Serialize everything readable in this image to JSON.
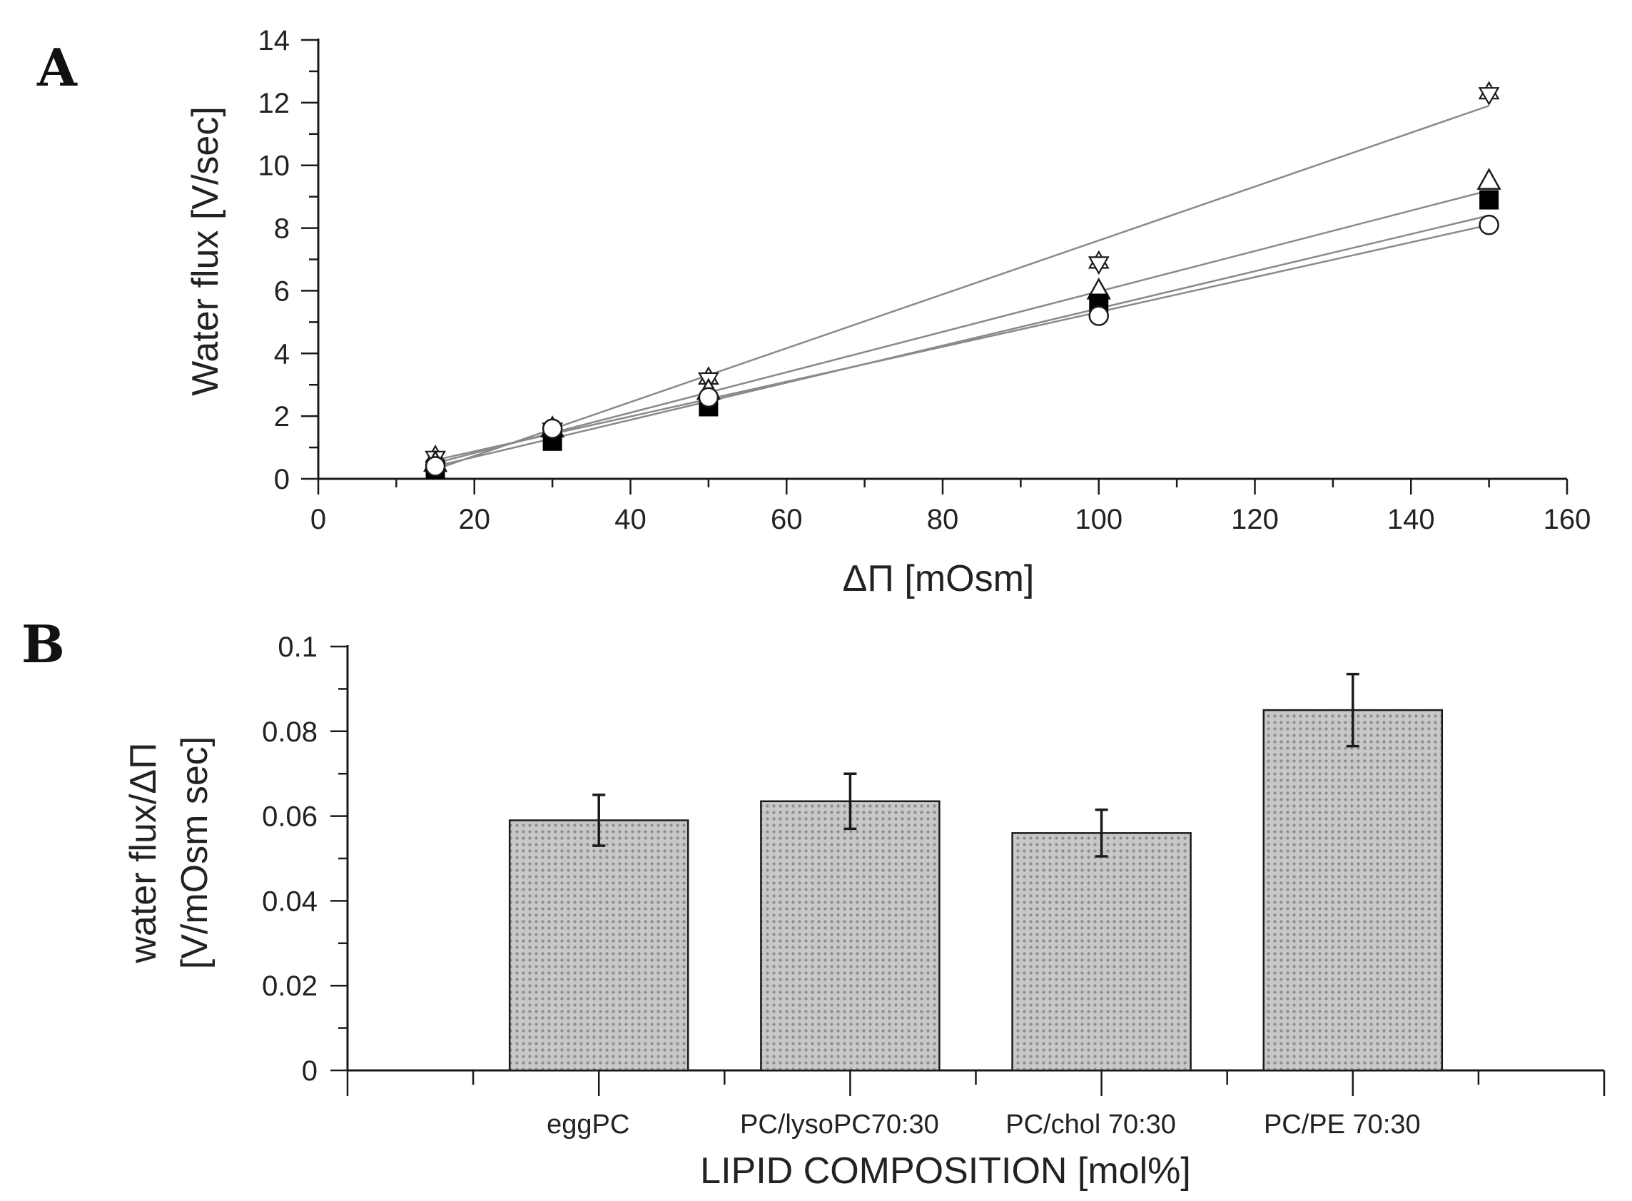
{
  "colors": {
    "ink": "#1a1a1a",
    "fit_line": "#8a8a8a",
    "bar_fill": "#c4c4c4",
    "bar_dot": "#8f8f8f"
  },
  "chart_data": [
    {
      "panel": "A",
      "type": "scatter",
      "xlabel": "ΔΠ [mOsm]",
      "ylabel": "Water flux [V/sec]",
      "xlim": [
        0,
        160
      ],
      "ylim": [
        0,
        14
      ],
      "xticks": [
        0,
        20,
        40,
        60,
        80,
        100,
        120,
        140,
        160
      ],
      "yticks": [
        0,
        2,
        4,
        6,
        8,
        10,
        12,
        14
      ],
      "series": [
        {
          "name": "PC/PE 70:30",
          "marker": "star-open",
          "x": [
            15,
            30,
            50,
            100,
            150
          ],
          "y": [
            0.7,
            1.6,
            3.2,
            6.9,
            12.3
          ],
          "fit": [
            0.3,
            11.9
          ]
        },
        {
          "name": "PC/lysoPC70:30",
          "marker": "triangle-open",
          "x": [
            15,
            30,
            50,
            100,
            150
          ],
          "y": [
            0.5,
            1.6,
            2.8,
            6.0,
            9.5
          ],
          "fit": [
            0.5,
            9.2
          ]
        },
        {
          "name": "eggPC",
          "marker": "square-filled",
          "x": [
            15,
            30,
            50,
            100,
            150
          ],
          "y": [
            0.3,
            1.2,
            2.3,
            5.6,
            8.9
          ],
          "fit": [
            0.4,
            8.4
          ]
        },
        {
          "name": "PC/chol 70:30",
          "marker": "circle-open",
          "x": [
            15,
            30,
            50,
            100,
            150
          ],
          "y": [
            0.4,
            1.6,
            2.6,
            5.2,
            8.1
          ],
          "fit": [
            0.6,
            8.1
          ]
        }
      ]
    },
    {
      "panel": "B",
      "type": "bar",
      "xlabel": "LIPID COMPOSITION [mol%]",
      "ylabel_line1": "water flux/ΔΠ",
      "ylabel_line2": "[V/mOsm sec]",
      "ylim": [
        0,
        0.1
      ],
      "yticks": [
        "0",
        "0.02",
        "0.04",
        "0.06",
        "0.08",
        "0.1"
      ],
      "categories": [
        "eggPC",
        "PC/lysoPC70:30",
        "PC/chol 70:30",
        "PC/PE 70:30"
      ],
      "values": [
        0.059,
        0.0635,
        0.056,
        0.085
      ],
      "errors": [
        0.006,
        0.0065,
        0.0055,
        0.0085
      ]
    }
  ]
}
